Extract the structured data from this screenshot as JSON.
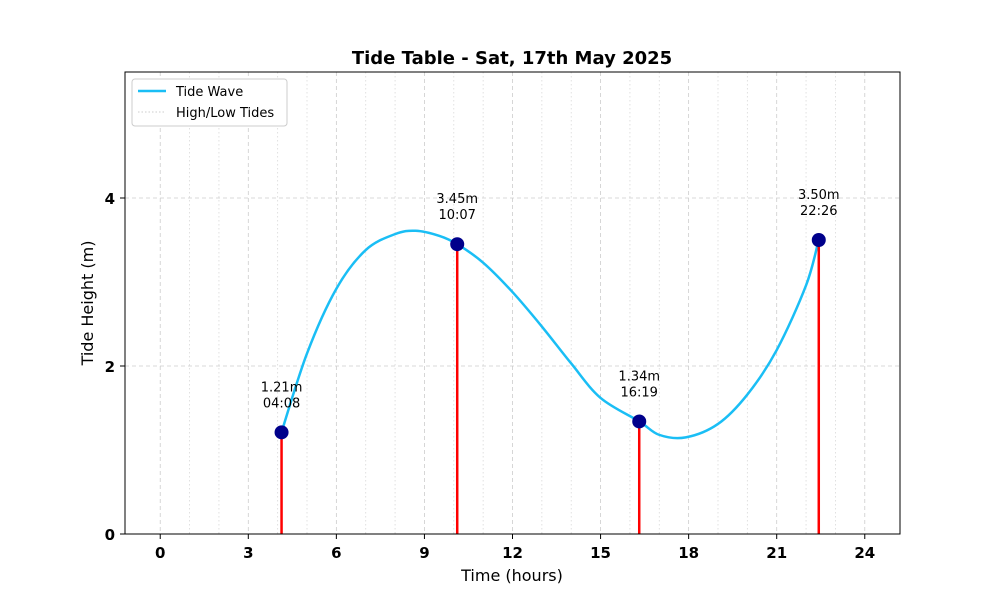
{
  "chart_data": {
    "type": "line",
    "title": "Tide Table - Sat, 17th May 2025",
    "xlabel": "Time (hours)",
    "ylabel": "Tide Height (m)",
    "xlim": [
      -1.2,
      25.2
    ],
    "ylim": [
      0,
      5.5
    ],
    "xticks": [
      0,
      3,
      6,
      9,
      12,
      15,
      18,
      21,
      24
    ],
    "xtick_labels": [
      "0",
      "3",
      "6",
      "9",
      "12",
      "15",
      "18",
      "21",
      "24"
    ],
    "yticks": [
      0,
      2,
      4
    ],
    "ytick_labels": [
      "0",
      "2",
      "4"
    ],
    "grid": true,
    "legend_position": "top-left",
    "legend": [
      {
        "label": "Tide Wave",
        "style": "line",
        "color": "#1ABEF5"
      },
      {
        "label": "High/Low Tides",
        "style": "dotted",
        "color": "#cccccc"
      }
    ],
    "series": [
      {
        "name": "Tide Wave",
        "color": "#1ABEF5",
        "x": [
          4.13,
          5.0,
          6.0,
          7.0,
          8.0,
          8.7,
          9.5,
          10.12,
          11.0,
          12.0,
          13.0,
          14.0,
          15.0,
          16.32,
          17.0,
          17.9,
          19.0,
          20.0,
          21.0,
          22.0,
          22.43
        ],
        "y": [
          1.21,
          2.15,
          2.92,
          3.38,
          3.57,
          3.61,
          3.55,
          3.45,
          3.23,
          2.88,
          2.47,
          2.03,
          1.62,
          1.34,
          1.18,
          1.15,
          1.31,
          1.66,
          2.19,
          2.96,
          3.5
        ]
      }
    ],
    "tides": [
      {
        "time": 4.133,
        "height": 1.21,
        "height_label": "1.21m",
        "time_label": "04:08"
      },
      {
        "time": 10.117,
        "height": 3.45,
        "height_label": "3.45m",
        "time_label": "10:07"
      },
      {
        "time": 16.317,
        "height": 1.34,
        "height_label": "1.34m",
        "time_label": "16:19"
      },
      {
        "time": 22.433,
        "height": 3.5,
        "height_label": "3.50m",
        "time_label": "22:26"
      }
    ],
    "marker_color": "#00008B",
    "stem_color": "#ff0000"
  }
}
